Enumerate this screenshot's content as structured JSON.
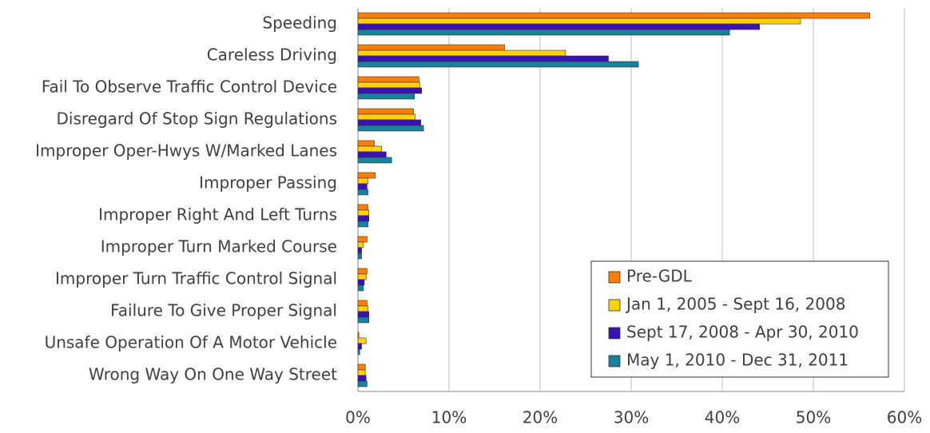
{
  "chart_data": {
    "type": "hbar",
    "categories": [
      "Speeding",
      "Careless Driving",
      "Fail To Observe Traffic Control Device",
      "Disregard Of Stop Sign Regulations",
      "Improper Oper-Hwys W/Marked Lanes",
      "Improper Passing",
      "Improper Right And Left Turns",
      "Improper Turn Marked Course",
      "Improper Turn Traffic Control Signal",
      "Failure To Give Proper Signal",
      "Unsafe Operation Of A Motor Vehicle",
      "Wrong Way On One Way Street"
    ],
    "series": [
      {
        "name": "Pre-GDL",
        "color": "#ff8000",
        "values": [
          56.2,
          16.1,
          6.7,
          6.1,
          1.8,
          1.9,
          1.1,
          1.0,
          1.0,
          1.0,
          0.1,
          0.8
        ]
      },
      {
        "name": "Jan 1, 2005 - Sept 16, 2008",
        "color": "#ffd200",
        "values": [
          48.6,
          22.8,
          6.8,
          6.3,
          2.6,
          1.1,
          1.2,
          0.6,
          0.9,
          1.1,
          0.9,
          0.8
        ]
      },
      {
        "name": "Sept 17, 2008 - Apr 30, 2010",
        "color": "#3a12b4",
        "values": [
          44.1,
          27.5,
          7.0,
          6.9,
          3.1,
          1.0,
          1.2,
          0.4,
          0.7,
          1.2,
          0.4,
          0.9
        ]
      },
      {
        "name": "May 1, 2010 - Dec 31, 2011",
        "color": "#17809c",
        "values": [
          40.8,
          30.8,
          6.2,
          7.2,
          3.7,
          1.1,
          1.1,
          0.4,
          0.6,
          1.2,
          0.2,
          1.0
        ]
      }
    ],
    "xlim": [
      0,
      60
    ],
    "xticks": [
      {
        "value": 0,
        "label": "0%"
      },
      {
        "value": 10,
        "label": "10%"
      },
      {
        "value": 20,
        "label": "20%"
      },
      {
        "value": 30,
        "label": "30%"
      },
      {
        "value": 40,
        "label": "40%"
      },
      {
        "value": 50,
        "label": "50%"
      },
      {
        "value": 60,
        "label": "60%"
      }
    ],
    "grid": true,
    "legend": "lower-right"
  }
}
